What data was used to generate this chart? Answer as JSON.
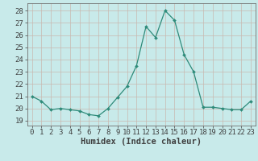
{
  "x": [
    0,
    1,
    2,
    3,
    4,
    5,
    6,
    7,
    8,
    9,
    10,
    11,
    12,
    13,
    14,
    15,
    16,
    17,
    18,
    19,
    20,
    21,
    22,
    23
  ],
  "y": [
    21.0,
    20.6,
    19.9,
    20.0,
    19.9,
    19.8,
    19.5,
    19.4,
    20.0,
    20.9,
    21.8,
    23.5,
    26.7,
    25.8,
    28.0,
    27.2,
    24.4,
    23.0,
    20.1,
    20.1,
    20.0,
    19.9,
    19.9,
    20.6
  ],
  "line_color": "#2e8b7a",
  "marker": "D",
  "marker_size": 2.0,
  "bg_color": "#c8eaea",
  "grid_color": "#c8b8b0",
  "ylabel_ticks": [
    19,
    20,
    21,
    22,
    23,
    24,
    25,
    26,
    27,
    28
  ],
  "ylim": [
    18.6,
    28.6
  ],
  "xlim": [
    -0.5,
    23.5
  ],
  "xlabel": "Humidex (Indice chaleur)",
  "font_color": "#404040",
  "tick_fontsize": 6.5,
  "label_fontsize": 7.5
}
